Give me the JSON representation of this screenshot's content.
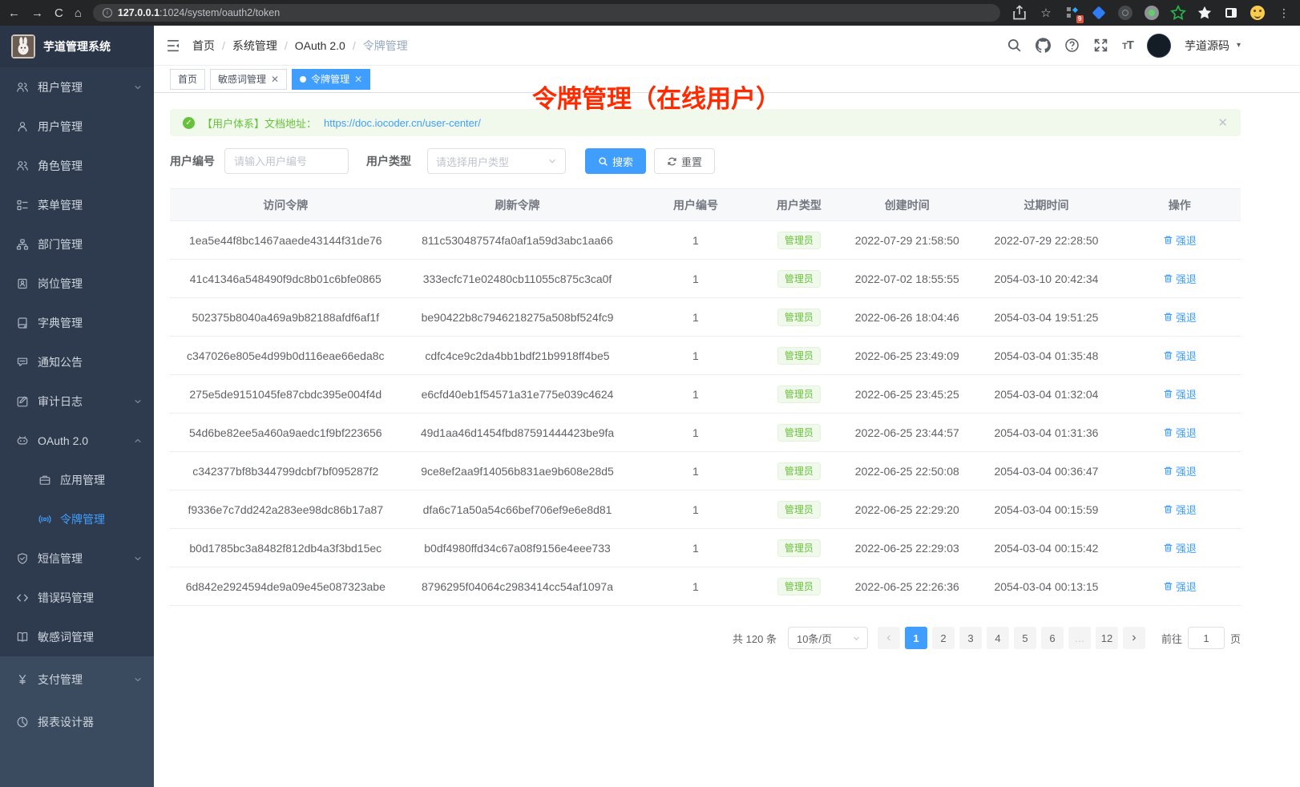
{
  "browser": {
    "url_host": "127.0.0.1",
    "url_rest": ":1024/system/oauth2/token",
    "extension_badge": "9"
  },
  "sidebar": {
    "title": "芋道管理系统",
    "items": [
      {
        "label": "租户管理",
        "icon": "tenant-users-icon",
        "chevron": "down"
      },
      {
        "label": "用户管理",
        "icon": "user-icon"
      },
      {
        "label": "角色管理",
        "icon": "roles-icon"
      },
      {
        "label": "菜单管理",
        "icon": "menu-tree-icon"
      },
      {
        "label": "部门管理",
        "icon": "department-icon"
      },
      {
        "label": "岗位管理",
        "icon": "post-icon"
      },
      {
        "label": "字典管理",
        "icon": "dictionary-icon"
      },
      {
        "label": "通知公告",
        "icon": "notice-icon"
      },
      {
        "label": "审计日志",
        "icon": "audit-log-icon",
        "chevron": "down"
      },
      {
        "label": "OAuth 2.0",
        "icon": "oauth-icon",
        "chevron": "up"
      },
      {
        "label": "应用管理",
        "icon": "application-icon",
        "sub": true
      },
      {
        "label": "令牌管理",
        "icon": "token-broadcast-icon",
        "sub": true,
        "active": true
      },
      {
        "label": "短信管理",
        "icon": "sms-shield-icon",
        "chevron": "down"
      },
      {
        "label": "错误码管理",
        "icon": "error-code-icon"
      },
      {
        "label": "敏感词管理",
        "icon": "sensitive-word-icon"
      },
      {
        "label": "支付管理",
        "icon": "payment-icon",
        "chevron": "down",
        "section": "bottom"
      },
      {
        "label": "报表设计器",
        "icon": "report-designer-icon",
        "section": "bottom"
      }
    ]
  },
  "navbar": {
    "breadcrumb": [
      "首页",
      "系统管理",
      "OAuth 2.0",
      "令牌管理"
    ],
    "user_name": "芋道源码"
  },
  "tabs": [
    {
      "label": "首页"
    },
    {
      "label": "敏感词管理",
      "closable": true
    },
    {
      "label": "令牌管理",
      "closable": true,
      "active": true
    }
  ],
  "annotation": "令牌管理（在线用户）",
  "alert": {
    "prefix": "【用户体系】文档地址：",
    "link": "https://doc.iocoder.cn/user-center/"
  },
  "filters": {
    "user_id_label": "用户编号",
    "user_id_placeholder": "请输入用户编号",
    "user_type_label": "用户类型",
    "user_type_placeholder": "请选择用户类型",
    "search_label": "搜索",
    "reset_label": "重置"
  },
  "table": {
    "columns": [
      "访问令牌",
      "刷新令牌",
      "用户编号",
      "用户类型",
      "创建时间",
      "过期时间",
      "操作"
    ],
    "col_widths": [
      "21.6%",
      "21.7%",
      "11.6%",
      "7.7%",
      "12.5%",
      "13.5%",
      "11.4%"
    ],
    "user_type_badge": "管理员",
    "action_label": "强退",
    "rows": [
      {
        "access": "1ea5e44f8bc1467aaede43144f31de76",
        "refresh": "811c530487574fa0af1a59d3abc1aa66",
        "user_id": "1",
        "created": "2022-07-29 21:58:50",
        "expires": "2022-07-29 22:28:50"
      },
      {
        "access": "41c41346a548490f9dc8b01c6bfe0865",
        "refresh": "333ecfc71e02480cb11055c875c3ca0f",
        "user_id": "1",
        "created": "2022-07-02 18:55:55",
        "expires": "2054-03-10 20:42:34"
      },
      {
        "access": "502375b8040a469a9b82188afdf6af1f",
        "refresh": "be90422b8c7946218275a508bf524fc9",
        "user_id": "1",
        "created": "2022-06-26 18:04:46",
        "expires": "2054-03-04 19:51:25"
      },
      {
        "access": "c347026e805e4d99b0d116eae66eda8c",
        "refresh": "cdfc4ce9c2da4bb1bdf21b9918ff4be5",
        "user_id": "1",
        "created": "2022-06-25 23:49:09",
        "expires": "2054-03-04 01:35:48"
      },
      {
        "access": "275e5de9151045fe87cbdc395e004f4d",
        "refresh": "e6cfd40eb1f54571a31e775e039c4624",
        "user_id": "1",
        "created": "2022-06-25 23:45:25",
        "expires": "2054-03-04 01:32:04"
      },
      {
        "access": "54d6be82ee5a460a9aedc1f9bf223656",
        "refresh": "49d1aa46d1454fbd87591444423be9fa",
        "user_id": "1",
        "created": "2022-06-25 23:44:57",
        "expires": "2054-03-04 01:31:36"
      },
      {
        "access": "c342377bf8b344799dcbf7bf095287f2",
        "refresh": "9ce8ef2aa9f14056b831ae9b608e28d5",
        "user_id": "1",
        "created": "2022-06-25 22:50:08",
        "expires": "2054-03-04 00:36:47"
      },
      {
        "access": "f9336e7c7dd242a283ee98dc86b17a87",
        "refresh": "dfa6c71a50a54c66bef706ef9e6e8d81",
        "user_id": "1",
        "created": "2022-06-25 22:29:20",
        "expires": "2054-03-04 00:15:59"
      },
      {
        "access": "b0d1785bc3a8482f812db4a3f3bd15ec",
        "refresh": "b0df4980ffd34c67a08f9156e4eee733",
        "user_id": "1",
        "created": "2022-06-25 22:29:03",
        "expires": "2054-03-04 00:15:42"
      },
      {
        "access": "6d842e2924594de9a09e45e087323abe",
        "refresh": "8796295f04064c2983414cc54af1097a",
        "user_id": "1",
        "created": "2022-06-25 22:26:36",
        "expires": "2054-03-04 00:13:15"
      }
    ]
  },
  "pagination": {
    "total_label": "共 120 条",
    "page_size": "10条/页",
    "prev": "‹",
    "next": "›",
    "pages": [
      "1",
      "2",
      "3",
      "4",
      "5",
      "6",
      "…",
      "12"
    ],
    "active_page": "1",
    "goto_label": "前往",
    "goto_value": "1",
    "goto_suffix": "页"
  },
  "colors": {
    "accent": "#409eff",
    "success": "#67c23a",
    "annotation": "#ff2b00",
    "sidebar_bg": "#2e3b4e"
  }
}
